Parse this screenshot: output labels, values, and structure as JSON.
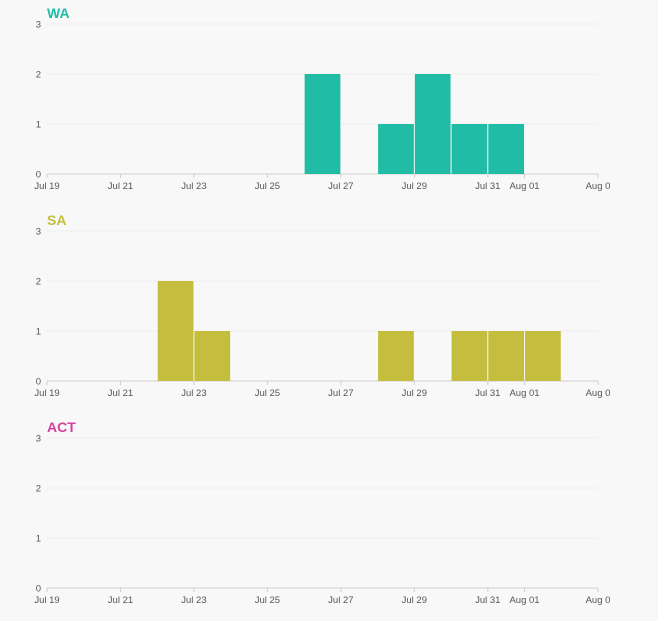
{
  "chart_data": [
    {
      "type": "bar",
      "title": "WA",
      "color": "#20bca5",
      "x_ticks": [
        "Jul 19",
        "Jul 21",
        "Jul 23",
        "Jul 25",
        "Jul 27",
        "Jul 29",
        "Jul 31",
        "Aug 01",
        "Aug 0"
      ],
      "y_ticks": [
        "0",
        "1",
        "2",
        "3"
      ],
      "ylim": [
        0,
        3
      ],
      "xlim": [
        "2020-07-19",
        "2020-08-03"
      ],
      "bars": [
        {
          "date": "2020-07-26",
          "value": 2
        },
        {
          "date": "2020-07-28",
          "value": 1
        },
        {
          "date": "2020-07-29",
          "value": 2
        },
        {
          "date": "2020-07-30",
          "value": 1
        },
        {
          "date": "2020-07-31",
          "value": 1
        }
      ],
      "grid": true
    },
    {
      "type": "bar",
      "title": "SA",
      "color": "#c5bd3e",
      "x_ticks": [
        "Jul 19",
        "Jul 21",
        "Jul 23",
        "Jul 25",
        "Jul 27",
        "Jul 29",
        "Jul 31",
        "Aug 01",
        "Aug 0"
      ],
      "y_ticks": [
        "0",
        "1",
        "2",
        "3"
      ],
      "ylim": [
        0,
        3
      ],
      "xlim": [
        "2020-07-19",
        "2020-08-03"
      ],
      "bars": [
        {
          "date": "2020-07-22",
          "value": 2
        },
        {
          "date": "2020-07-23",
          "value": 1
        },
        {
          "date": "2020-07-28",
          "value": 1
        },
        {
          "date": "2020-07-30",
          "value": 1
        },
        {
          "date": "2020-07-31",
          "value": 1
        },
        {
          "date": "2020-08-01",
          "value": 1
        }
      ],
      "grid": true
    },
    {
      "type": "bar",
      "title": "ACT",
      "color": "#d63fa0",
      "x_ticks": [
        "Jul 19",
        "Jul 21",
        "Jul 23",
        "Jul 25",
        "Jul 27",
        "Jul 29",
        "Jul 31",
        "Aug 01",
        "Aug 0"
      ],
      "y_ticks": [
        "0",
        "1",
        "2",
        "3"
      ],
      "ylim": [
        0,
        3
      ],
      "xlim": [
        "2020-07-19",
        "2020-08-03"
      ],
      "bars": [],
      "grid": true
    }
  ]
}
